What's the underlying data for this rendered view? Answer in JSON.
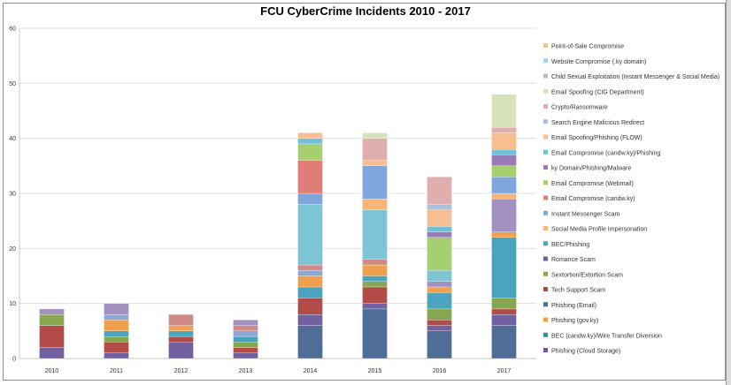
{
  "chart_data": {
    "type": "bar",
    "stacked": true,
    "title": "FCU CyberCrime Incidents 2010 - 2017",
    "xlabel": "",
    "ylabel": "",
    "ylim": [
      0,
      60
    ],
    "yticks": [
      0,
      10,
      20,
      30,
      40,
      50,
      60
    ],
    "grid": true,
    "legend_position": "right",
    "categories": [
      "2010",
      "2011",
      "2012",
      "2013",
      "2014",
      "2015",
      "2016",
      "2017"
    ],
    "series": [
      {
        "name": "Phishing (Cloud Storage)",
        "color": "#4f6d96",
        "values": [
          0,
          0,
          0,
          0,
          6,
          9,
          5,
          6
        ]
      },
      {
        "name": "BEC (candw.ky)/Wire Transfer Diversion",
        "color": "#7260a0",
        "values": [
          2,
          1,
          3,
          1,
          2,
          1,
          1,
          2
        ]
      },
      {
        "name": "Phishing (gov.ky)",
        "color": "#b24c48",
        "values": [
          4,
          2,
          1,
          1,
          3,
          3,
          1,
          1
        ]
      },
      {
        "name": "Phishing (Email)",
        "color": "#86a74f",
        "values": [
          2,
          1,
          0,
          1,
          0,
          1,
          2,
          2
        ]
      },
      {
        "name": "Tech Support Scam",
        "color": "#4ba3bd",
        "values": [
          0,
          1,
          1,
          1,
          2,
          1,
          3,
          11
        ]
      },
      {
        "name": "Sextortion/Extortion Scam",
        "color": "#f0a04c",
        "values": [
          0,
          2,
          1,
          0,
          2,
          2,
          1,
          1
        ]
      },
      {
        "name": "Romance Scam",
        "color": "#8ba9d4",
        "values": [
          0,
          1,
          0,
          1,
          1,
          0,
          0,
          0
        ]
      },
      {
        "name": "BEC/Phishing",
        "color": "#d08a88",
        "values": [
          0,
          0,
          2,
          1,
          1,
          1,
          0,
          0
        ]
      },
      {
        "name": "Social Media Profile Impersonation",
        "color": "#b4cd83",
        "values": [
          0,
          0,
          0,
          0,
          0,
          0,
          0,
          0
        ]
      },
      {
        "name": "Instant Messenger Scam",
        "color": "#a190c0",
        "values": [
          1,
          2,
          0,
          1,
          0,
          0,
          1,
          6
        ]
      },
      {
        "name": "Email Compromise (candw.ky)",
        "color": "#7dc4d4",
        "values": [
          0,
          0,
          0,
          0,
          11,
          9,
          2,
          0
        ]
      },
      {
        "name": "Email Compromise (Webmail)",
        "color": "#f6b579",
        "values": [
          0,
          0,
          0,
          0,
          0,
          2,
          0,
          1
        ]
      },
      {
        "name": "ky Domain/Phishing/Malware",
        "color": "#7fa6dd",
        "values": [
          0,
          0,
          0,
          0,
          2,
          6,
          0,
          3
        ]
      },
      {
        "name": "Email Compromise (candw.ky)/Phishing",
        "color": "#e07d77",
        "values": [
          0,
          0,
          0,
          0,
          6,
          0,
          0,
          0
        ]
      },
      {
        "name": "Email Spoofing/Phishing (FLOW)",
        "color": "#a6cf6f",
        "values": [
          0,
          0,
          0,
          0,
          3,
          0,
          6,
          2
        ]
      },
      {
        "name": "Search Engine Malicious Redirect",
        "color": "#9b7ab8",
        "values": [
          0,
          0,
          0,
          0,
          0,
          0,
          1,
          2
        ]
      },
      {
        "name": "Crypto/Ransomware",
        "color": "#6fc1d9",
        "values": [
          0,
          0,
          0,
          0,
          1,
          0,
          1,
          1
        ]
      },
      {
        "name": "Email Spoofing (CIG Department)",
        "color": "#f7bf91",
        "values": [
          0,
          0,
          0,
          0,
          1,
          1,
          3,
          3
        ]
      },
      {
        "name": "Child Sexual Exploitation (Instant Messenger & Social Media)",
        "color": "#aebfdc",
        "values": [
          0,
          0,
          0,
          0,
          0,
          0,
          1,
          0
        ]
      },
      {
        "name": "Website Compromise (.ky domain)",
        "color": "#e1aeb0",
        "values": [
          0,
          0,
          0,
          0,
          0,
          4,
          5,
          1
        ]
      },
      {
        "name": "Point-of-Sale Compromise",
        "color": "#d7e4bb",
        "values": [
          0,
          0,
          0,
          0,
          0,
          1,
          0,
          6
        ]
      }
    ],
    "legend_order": [
      "Point-of-Sale Compromise",
      "Website Compromise (.ky domain)",
      "Child Sexual Exploitation (Instant Messenger & Social Media)",
      "Email Spoofing (CIG Department)",
      "Crypto/Ransomware",
      "Search Engine Malicious Redirect",
      "Email Spoofing/Phishing (FLOW)",
      "Email Compromise (candw.ky)/Phishing",
      "ky Domain/Phishing/Malware",
      "Email Compromise (Webmail)",
      "Email Compromise (candw.ky)",
      "Instant Messenger Scam",
      "Social Media Profile Impersonation",
      "BEC/Phishing",
      "Romance Scam",
      "Sextortion/Extortion Scam",
      "Tech Support Scam",
      "Phishing (Email)",
      "Phishing (gov.ky)",
      "BEC (candw.ky)/Wire Transfer Diversion",
      "Phishing (Cloud Storage)"
    ],
    "legend_colors": {
      "Point-of-Sale Compromise": "#f6c28b",
      "Website Compromise (.ky domain)": "#a8d4e0",
      "Child Sexual Exploitation (Instant Messenger & Social Media)": "#c2b5d4",
      "Email Spoofing (CIG Department)": "#d7e4bb",
      "Crypto/Ransomware": "#e1aeb0",
      "Search Engine Malicious Redirect": "#aebfdc",
      "Email Spoofing/Phishing (FLOW)": "#f7bf91",
      "Email Compromise (candw.ky)/Phishing": "#6fc1d9",
      "ky Domain/Phishing/Malware": "#9b7ab8",
      "Email Compromise (Webmail)": "#a6cf6f",
      "Email Compromise (candw.ky)": "#e07d77",
      "Instant Messenger Scam": "#7fa6dd",
      "Social Media Profile Impersonation": "#f6b579",
      "BEC/Phishing": "#4ba3bd",
      "Romance Scam": "#7260a0",
      "Sextortion/Extortion Scam": "#86a74f",
      "Tech Support Scam": "#b24c48",
      "Phishing (Email)": "#4f6d96",
      "Phishing (gov.ky)": "#f0a04c",
      "BEC (candw.ky)/Wire Transfer Diversion": "#3f88a8",
      "Phishing (Cloud Storage)": "#6e58a0"
    }
  }
}
